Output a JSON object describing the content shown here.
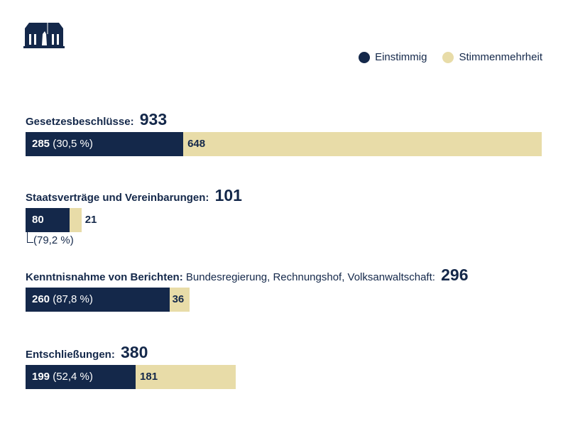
{
  "legend": [
    {
      "label": "Einstimmig",
      "color": "#14284a"
    },
    {
      "label": "Stimmenmehrheit",
      "color": "#e8dca8"
    }
  ],
  "chart_data": {
    "type": "bar",
    "orientation": "horizontal",
    "stacked": true,
    "categories": [
      {
        "title": "Gesetzesbeschlüsse:",
        "subtitle": "",
        "total": "933",
        "unanimous": "285",
        "pct": "(30,5 %)",
        "majority": "648"
      },
      {
        "title": "Staatsverträge und Vereinbarungen:",
        "subtitle": "",
        "total": "101",
        "unanimous": "80",
        "pct": "(79,2 %)",
        "majority": "21"
      },
      {
        "title": "Kenntnisnahme von Berichten:",
        "subtitle": "Bundesregierung, Rechnungshof, Volksanwaltschaft:",
        "total": "296",
        "unanimous": "260",
        "pct": "(87,8 %)",
        "majority": "36"
      },
      {
        "title": "Entschließungen:",
        "subtitle": "",
        "total": "380",
        "unanimous": "199",
        "pct": "(52,4 %)",
        "majority": "181"
      }
    ],
    "series": [
      {
        "name": "Einstimmig",
        "values": [
          285,
          80,
          260,
          199
        ]
      },
      {
        "name": "Stimmenmehrheit",
        "values": [
          648,
          21,
          36,
          181
        ]
      }
    ]
  }
}
